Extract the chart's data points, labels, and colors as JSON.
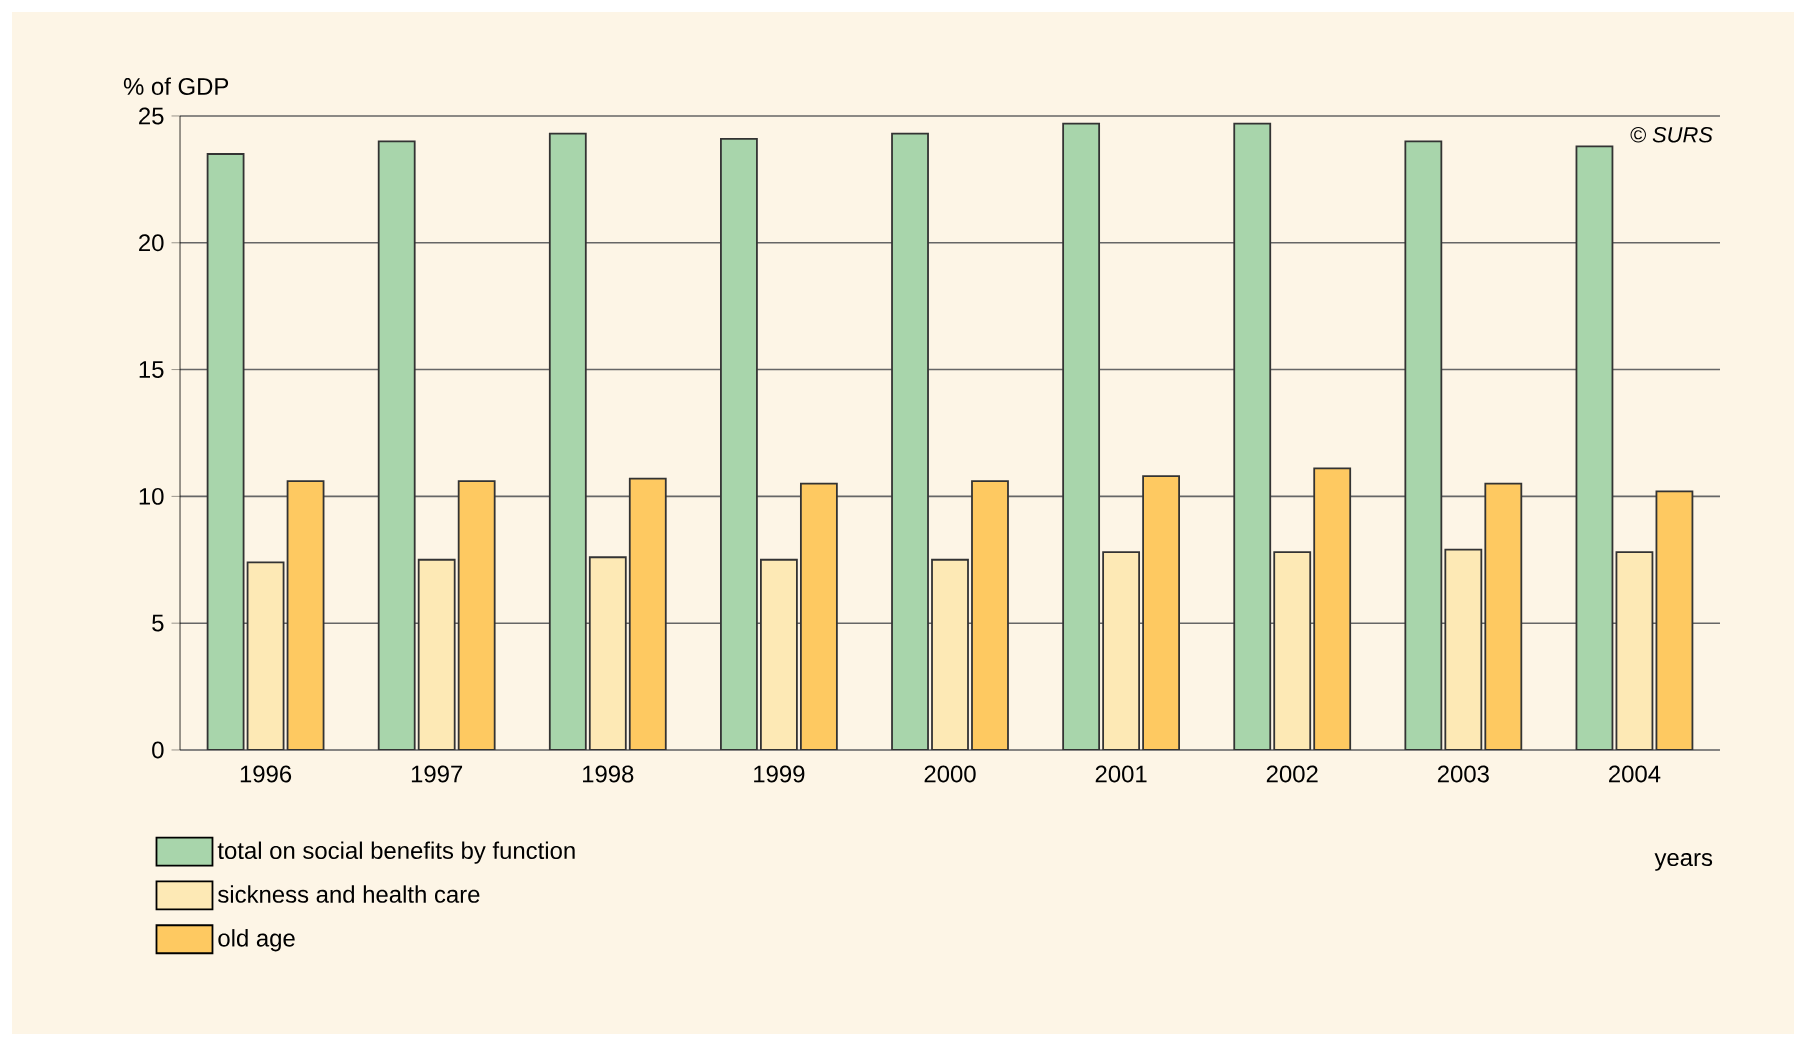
{
  "chart_data": {
    "type": "bar",
    "ylabel": "% of GDP",
    "xlabel": "years",
    "categories": [
      "1996",
      "1997",
      "1998",
      "1999",
      "2000",
      "2001",
      "2002",
      "2003",
      "2004"
    ],
    "series": [
      {
        "name": "total on social benefits by function",
        "color": "#a8d5ab",
        "values": [
          23.5,
          24.0,
          24.3,
          24.1,
          24.3,
          24.7,
          24.7,
          24.0,
          23.8
        ]
      },
      {
        "name": "sickness and health care",
        "color": "#fde9b5",
        "values": [
          7.4,
          7.5,
          7.6,
          7.5,
          7.5,
          7.8,
          7.8,
          7.9,
          7.8
        ]
      },
      {
        "name": "old age",
        "color": "#fec961",
        "values": [
          10.6,
          10.6,
          10.7,
          10.5,
          10.6,
          10.8,
          11.1,
          10.5,
          10.2
        ]
      }
    ],
    "ylim": [
      0,
      25
    ],
    "yticks": [
      0,
      5,
      10,
      15,
      20,
      25
    ],
    "grid": "y",
    "legend": "bottom left",
    "annotations": [
      "© SURS"
    ]
  }
}
